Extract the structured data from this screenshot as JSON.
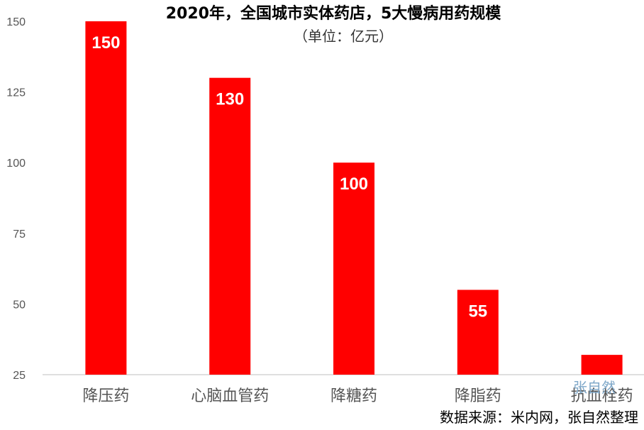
{
  "chart_data": {
    "type": "bar",
    "title": "2020年，全国城市实体药店，5大慢病用药规模",
    "subtitle": "（单位：亿元）",
    "categories": [
      "降压药",
      "心脑血管药",
      "降糖药",
      "降脂药",
      "抗血栓药"
    ],
    "values": [
      150,
      130,
      100,
      55,
      32
    ],
    "data_labels": [
      "150",
      "130",
      "100",
      "55",
      ""
    ],
    "ylim": [
      25,
      150
    ],
    "yticks": [
      25,
      50,
      75,
      100,
      125,
      150
    ],
    "bar_color": "#ff0000",
    "grid": false,
    "legend": "none"
  },
  "source_note": "数据来源：米内网，张自然整理",
  "watermark": "张自然"
}
